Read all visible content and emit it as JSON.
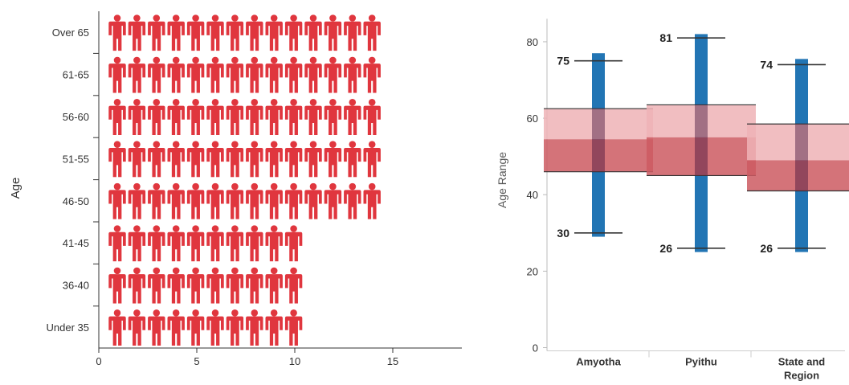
{
  "colors": {
    "person": "#e0363e",
    "whisker": "#2275b4",
    "box_upper": "#eeb3b6",
    "box_lower": "#cc5a62",
    "axis": "#333333"
  },
  "chart_data": [
    {
      "type": "bar",
      "title": "",
      "ylabel": "Age",
      "xlabel": "",
      "categories": [
        "Over 65",
        "61-65",
        "56-60",
        "51-55",
        "46-50",
        "41-45",
        "36-40",
        "Under 35"
      ],
      "values": [
        14,
        14,
        14,
        14,
        14,
        10,
        10,
        10
      ],
      "xlim": [
        0,
        18.5
      ],
      "xticks": [
        0,
        5,
        10,
        15
      ],
      "mark": "person-icon",
      "grid": false
    },
    {
      "type": "box",
      "title": "",
      "ylabel": "Age Range",
      "categories": [
        "Amyotha",
        "Pyithu",
        "State and Region"
      ],
      "series": [
        {
          "category": "Amyotha",
          "min": 29,
          "max": 77,
          "q1": 46,
          "median": 54.5,
          "q3": 62.5,
          "label_top": "75",
          "label_top_value": 75,
          "label_bottom": "30",
          "label_bottom_value": 30
        },
        {
          "category": "Pyithu",
          "min": 25,
          "max": 82,
          "q1": 45,
          "median": 55,
          "q3": 63.5,
          "label_top": "81",
          "label_top_value": 81,
          "label_bottom": "26",
          "label_bottom_value": 26
        },
        {
          "category": "State and Region",
          "min": 25,
          "max": 75.5,
          "q1": 41,
          "median": 49,
          "q3": 58.5,
          "label_top": "74",
          "label_top_value": 74,
          "label_bottom": "26",
          "label_bottom_value": 26
        }
      ],
      "ylim": [
        0,
        86
      ],
      "yticks": [
        0,
        20,
        40,
        60,
        80
      ],
      "grid": false
    }
  ]
}
